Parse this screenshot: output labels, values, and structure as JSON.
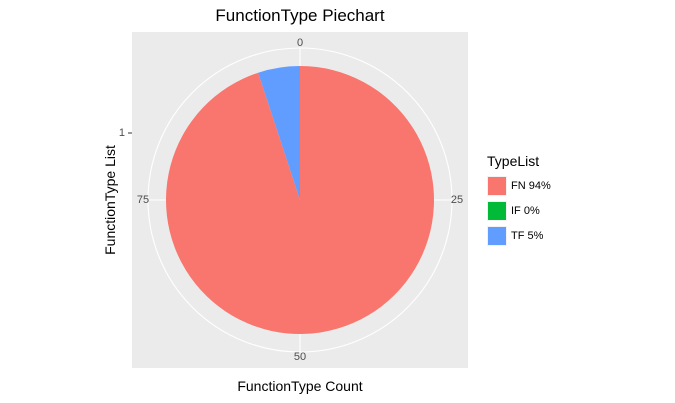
{
  "chart_data": {
    "type": "pie",
    "title": "FunctionType Piechart",
    "xlabel": "FunctionType Count",
    "ylabel": "FunctionType List",
    "y_tick": "1",
    "theta_ticks": [
      {
        "value": 0,
        "label": "0"
      },
      {
        "value": 25,
        "label": "25"
      },
      {
        "value": 50,
        "label": "50"
      },
      {
        "value": 75,
        "label": "75"
      }
    ],
    "theta_max": 100,
    "legend_title": "TypeList",
    "legend_position": "right",
    "categories": [
      "FN 94%",
      "IF 0%",
      "TF 5%"
    ],
    "values": [
      94,
      0,
      5
    ],
    "colors": [
      "#f8766d",
      "#00ba38",
      "#619cff"
    ],
    "panel_background": "#ebebeb",
    "grid": true
  }
}
